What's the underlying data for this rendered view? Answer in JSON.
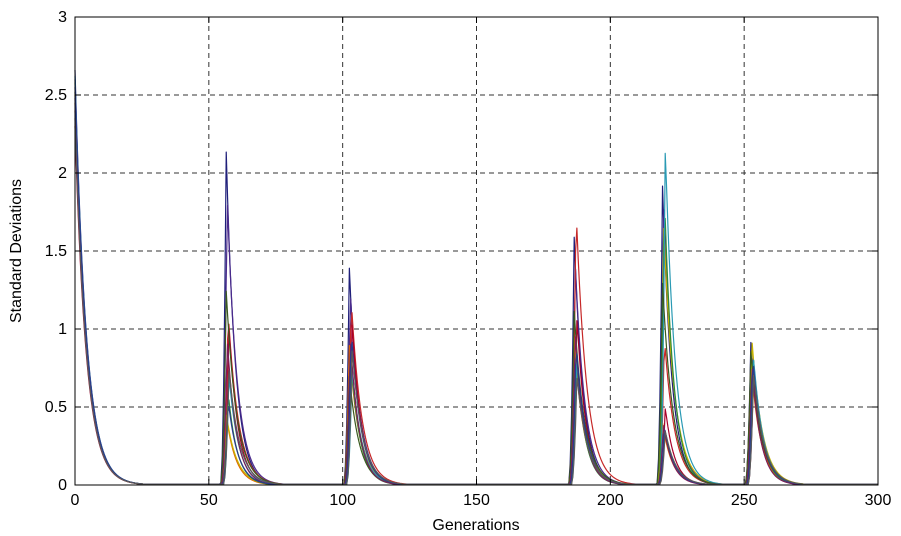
{
  "chart_data": {
    "type": "line",
    "title": "",
    "xlabel": "Generations",
    "ylabel": "Standard Deviations",
    "xlim": [
      0,
      300
    ],
    "ylim": [
      0,
      3
    ],
    "xticks": [
      0,
      50,
      100,
      150,
      200,
      250,
      300
    ],
    "yticks": [
      0,
      0.5,
      1,
      1.5,
      2,
      2.5,
      3
    ],
    "xtick_labels": [
      "0",
      "50",
      "100",
      "150",
      "200",
      "250",
      "300"
    ],
    "ytick_labels": [
      "0",
      "0.5",
      "1",
      "1.5",
      "2",
      "2.5",
      "3"
    ],
    "grid": true,
    "legend": "none",
    "restart_generations": [
      55,
      101,
      185,
      218,
      251
    ],
    "series": [
      {
        "color": "#1f1f7a",
        "start": 2.66,
        "peaks": [
          2.15,
          1.4,
          1.6,
          1.93,
          0.92
        ]
      },
      {
        "color": "#4b2a8c",
        "start": 2.55,
        "peaks": [
          1.88,
          1.25,
          1.45,
          1.85,
          0.85
        ]
      },
      {
        "color": "#c62828",
        "start": 2.4,
        "peaks": [
          1.12,
          1.2,
          1.79,
          0.95,
          0.7
        ]
      },
      {
        "color": "#a8002a",
        "start": 2.3,
        "peaks": [
          1.02,
          1.05,
          1.08,
          0.5,
          0.75
        ]
      },
      {
        "color": "#e06600",
        "start": 2.45,
        "peaks": [
          0.45,
          0.9,
          0.95,
          0.4,
          0.8
        ]
      },
      {
        "color": "#c8b400",
        "start": 2.5,
        "peaks": [
          0.42,
          0.85,
          0.9,
          1.72,
          0.95
        ]
      },
      {
        "color": "#2e8b3a",
        "start": 2.58,
        "peaks": [
          0.6,
          0.8,
          0.85,
          1.88,
          0.88
        ]
      },
      {
        "color": "#2a9ab4",
        "start": 2.62,
        "peaks": [
          0.7,
          0.75,
          0.8,
          2.18,
          0.82
        ]
      },
      {
        "color": "#3a5a1f",
        "start": 2.52,
        "peaks": [
          1.25,
          0.7,
          1.12,
          1.3,
          0.86
        ]
      },
      {
        "color": "#7a1f5a",
        "start": 2.48,
        "peaks": [
          0.95,
          0.95,
          1.0,
          0.4,
          0.78
        ]
      },
      {
        "color": "#2a3a8c",
        "start": 2.6,
        "peaks": [
          0.55,
          1.0,
          0.92,
          0.38,
          0.83
        ]
      },
      {
        "color": "#5a5a5a",
        "start": 2.35,
        "peaks": [
          0.75,
          0.88,
          0.7,
          0.35,
          0.72
        ]
      }
    ]
  }
}
